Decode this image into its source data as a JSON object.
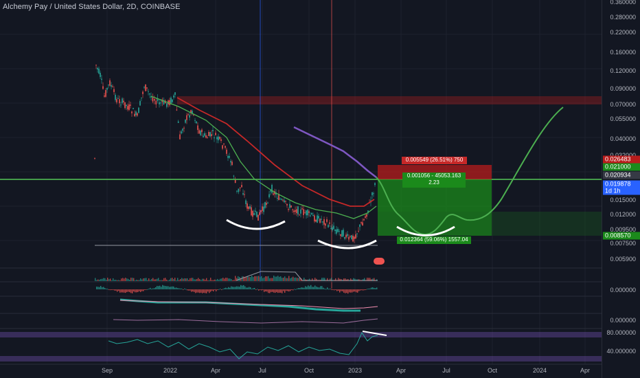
{
  "chart_title": "Alchemy Pay / United States Dollar, 2D, COINBASE",
  "colors": {
    "background": "#131722",
    "up": "#26a69a",
    "down": "#ef5350",
    "ma_fast": "#4caf50",
    "ma_slow": "#c62828",
    "ma_purple": "#7e57c2",
    "green_line": "#4caf50",
    "profit_zone": "#1b8a1b",
    "loss_zone": "#b71c1c",
    "arc": "#ffffff"
  },
  "price_axis": {
    "ticks": [
      "0.360000",
      "0.280000",
      "0.220000",
      "0.160000",
      "0.120000",
      "0.090000",
      "0.070000",
      "0.055000",
      "0.040000",
      "0.032000",
      "0.015000",
      "0.012000",
      "0.009500",
      "0.007500",
      "0.005900"
    ],
    "tags": [
      {
        "label": "0.026483",
        "color": "#b71c1c"
      },
      {
        "label": "0.021000",
        "color": "#1b8a1b"
      },
      {
        "label": "0.020934",
        "color": "#363a45"
      },
      {
        "label": "0.019878",
        "color": "#2962ff"
      },
      {
        "label": "1d 1h",
        "color": "#2962ff"
      },
      {
        "label": "0.008570",
        "color": "#1b8a1b"
      }
    ]
  },
  "time_axis": [
    "Sep",
    "2022",
    "Apr",
    "Jul",
    "Oct",
    "2023",
    "Apr",
    "Jul",
    "Oct",
    "2024",
    "Apr"
  ],
  "position": {
    "stop_label": "0.005549 (26.51%) 750",
    "entry_label_line1": "0.001056 - 45053.163",
    "entry_label_line2": "2.23",
    "target_label": "0.012364 (59.06%) 1557.04"
  },
  "indicators": {
    "macd_zero": "0.000000",
    "osc_zero": "0.000000",
    "rsi_high": "80.000000",
    "rsi_low": "40.000000"
  }
}
